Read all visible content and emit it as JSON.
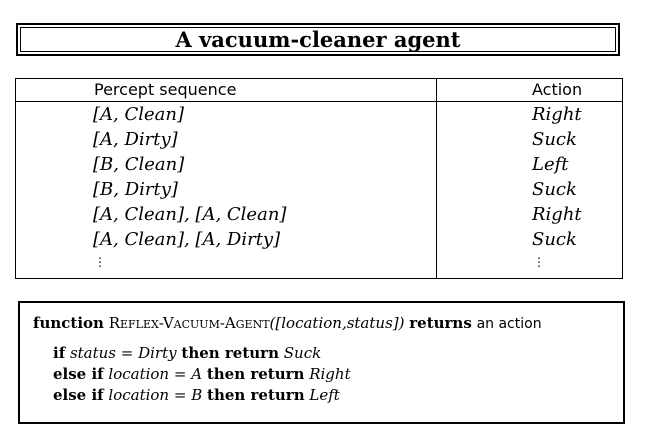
{
  "title": "A vacuum-cleaner agent",
  "table": {
    "header_percept": "Percept sequence",
    "header_action": "Action",
    "rows": [
      {
        "percept": "[A, Clean]",
        "action": "Right"
      },
      {
        "percept": "[A, Dirty]",
        "action": "Suck"
      },
      {
        "percept": "[B, Clean]",
        "action": "Left"
      },
      {
        "percept": "[B, Dirty]",
        "action": "Suck"
      },
      {
        "percept": "[A, Clean], [A, Clean]",
        "action": "Right"
      },
      {
        "percept": "[A, Clean], [A, Dirty]",
        "action": "Suck"
      }
    ],
    "ellipsis": "⋮"
  },
  "algorithm": {
    "kw_function": "function",
    "name_R": "R",
    "name_eflex": "eflex",
    "name_dash1": "-",
    "name_V": "V",
    "name_acuum": "acuum",
    "name_dash2": "-",
    "name_A": "A",
    "name_gent": "gent",
    "params": "([location,status])",
    "kw_returns": "returns",
    "returns_text": "an action",
    "line1_if": "if",
    "line1_var": "status",
    "line1_eq": " = ",
    "line1_val": "Dirty",
    "line1_then": "then return",
    "line1_result": "Suck",
    "line2_elseif": "else if",
    "line2_var": "location",
    "line2_eq": " = ",
    "line2_val": "A",
    "line2_then": "then return",
    "line2_result": "Right",
    "line3_elseif": "else if",
    "line3_var": "location",
    "line3_eq": " = ",
    "line3_val": "B",
    "line3_then": "then return",
    "line3_result": "Left"
  }
}
